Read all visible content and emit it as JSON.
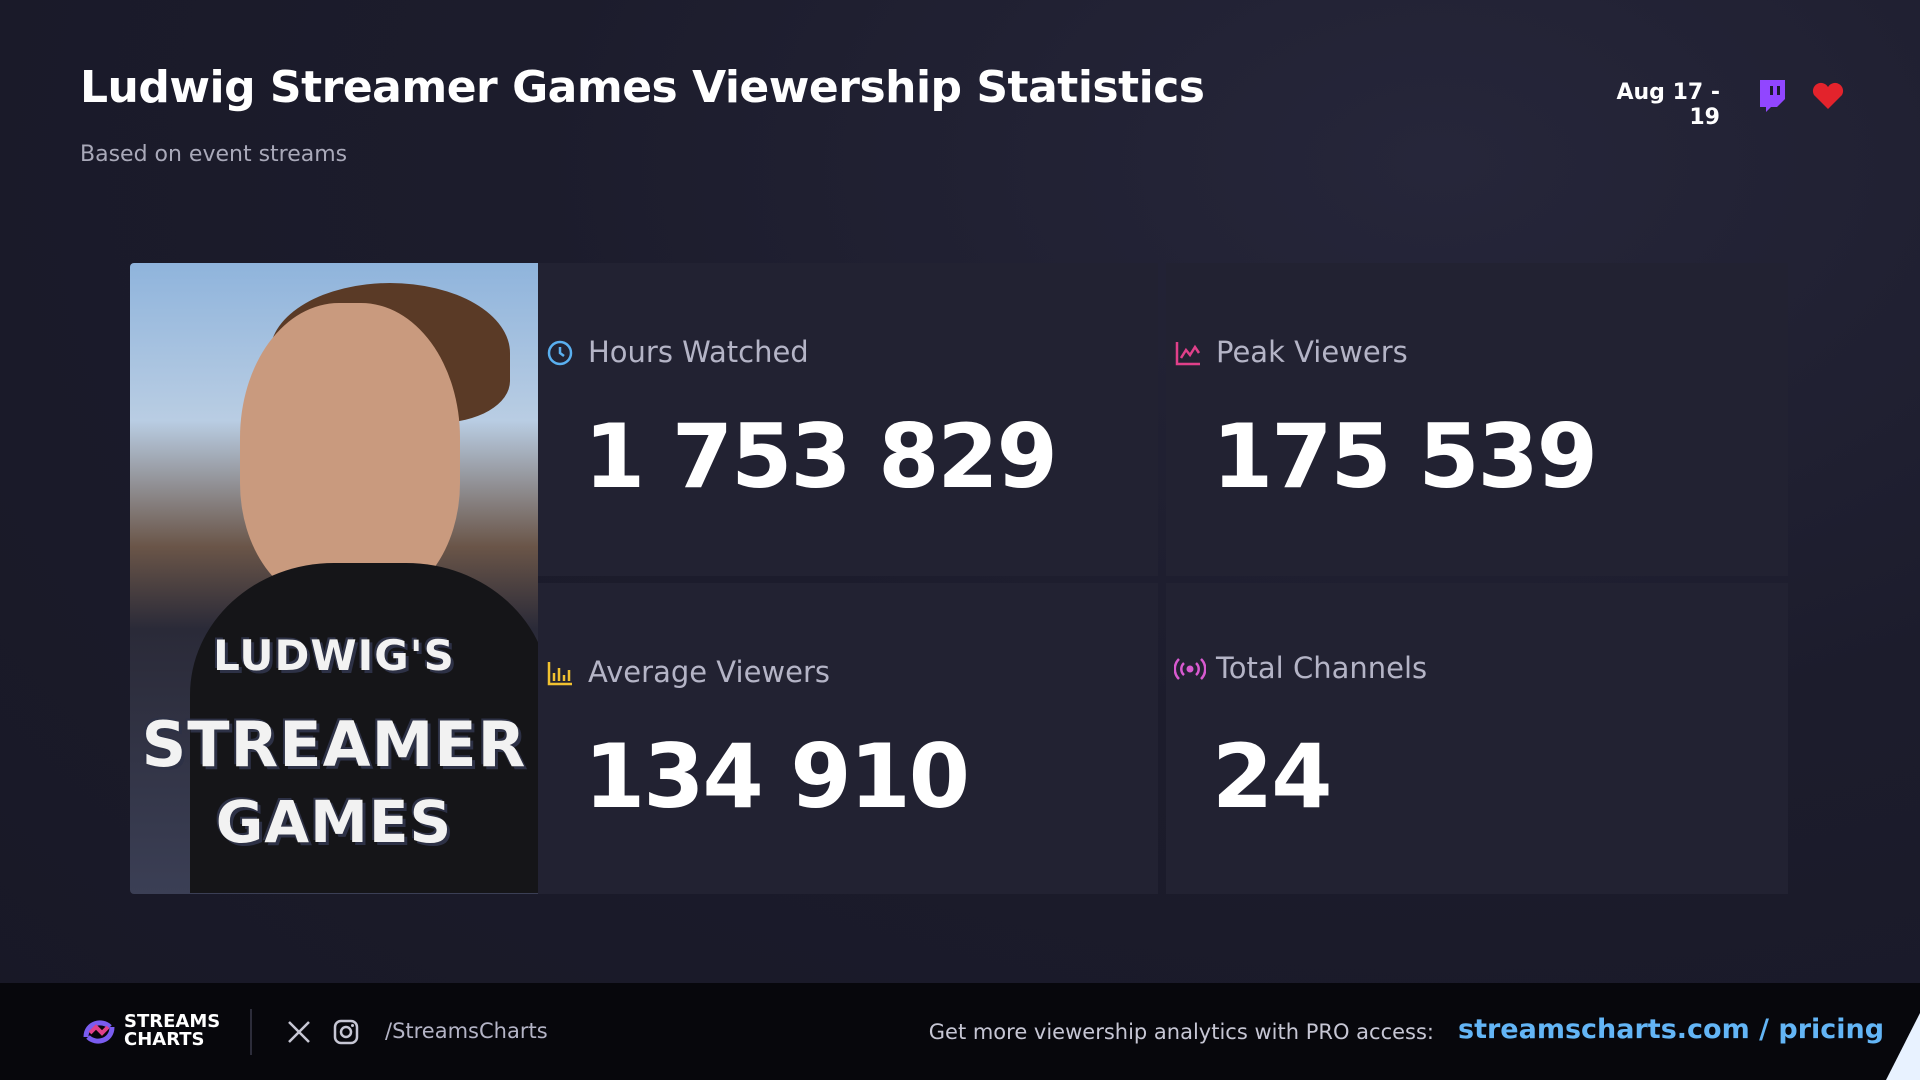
{
  "header": {
    "title": "Ludwig Streamer Games Viewership Statistics",
    "subtitle": "Based on event streams",
    "date": "Aug 17 - 19"
  },
  "image": {
    "lines": [
      "LUDWIG'S",
      "STREAMER",
      "GAMES"
    ]
  },
  "stats": [
    {
      "label": "Hours Watched",
      "value": "1 753 829"
    },
    {
      "label": "Peak Viewers",
      "value": "175 539"
    },
    {
      "label": "Average Viewers",
      "value": "134 910"
    },
    {
      "label": "Total Channels",
      "value": "24"
    }
  ],
  "footer": {
    "brand": [
      "STREAMS",
      "CHARTS"
    ],
    "handle": "/StreamsCharts",
    "cta": "Get more viewership analytics with PRO access:",
    "link": "streamscharts.com / pricing"
  }
}
